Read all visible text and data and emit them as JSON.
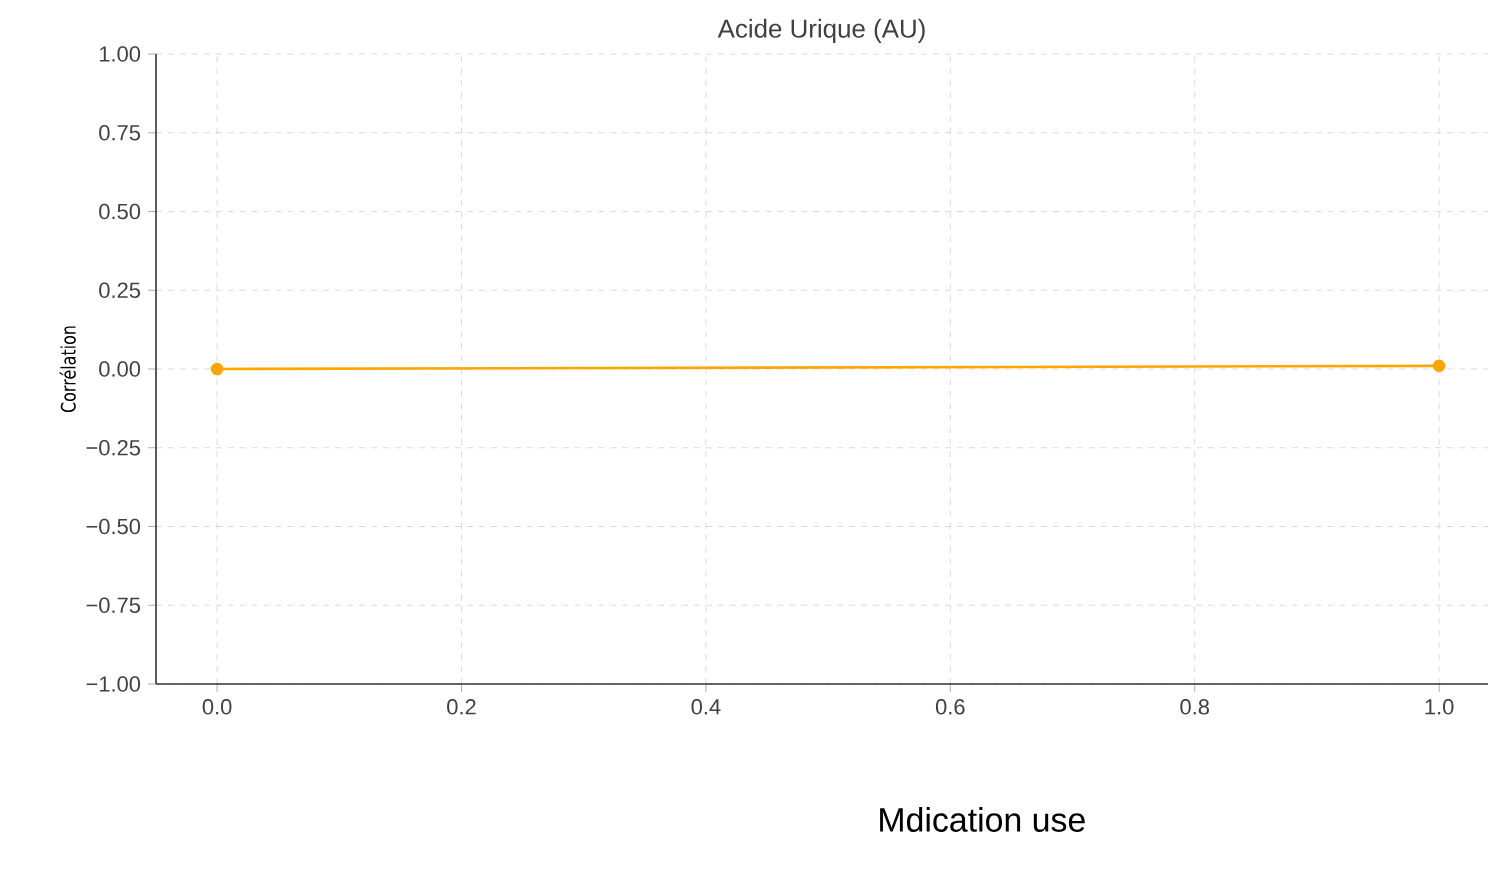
{
  "chart_data": {
    "type": "line",
    "title": "Acide Urique (AU)",
    "xlabel": "Mdication use",
    "ylabel": "Corrélation",
    "x": [
      0,
      1
    ],
    "series": [
      {
        "color": "#ffa500",
        "values": [
          0,
          0.01
        ]
      }
    ],
    "xlim": [
      -0.05,
      1.04
    ],
    "ylim": [
      -1,
      1
    ],
    "xticks": [
      {
        "value": 0,
        "label": "0.0"
      },
      {
        "value": 0.2,
        "label": "0.2"
      },
      {
        "value": 0.4,
        "label": "0.4"
      },
      {
        "value": 0.6,
        "label": "0.6"
      },
      {
        "value": 0.8,
        "label": "0.8"
      },
      {
        "value": 1,
        "label": "1.0"
      }
    ],
    "yticks": [
      {
        "value": -1,
        "label": "−1.00"
      },
      {
        "value": -0.75,
        "label": "−0.75"
      },
      {
        "value": -0.5,
        "label": "−0.50"
      },
      {
        "value": -0.25,
        "label": "−0.25"
      },
      {
        "value": 0,
        "label": "0.00"
      },
      {
        "value": 0.25,
        "label": "0.25"
      },
      {
        "value": 0.5,
        "label": "0.50"
      },
      {
        "value": 0.75,
        "label": "0.75"
      },
      {
        "value": 1,
        "label": "1.00"
      }
    ],
    "grid": true,
    "marker": "circle",
    "line_style": "solid"
  }
}
